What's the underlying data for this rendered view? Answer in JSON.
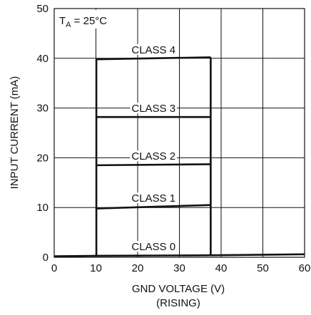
{
  "chart_data": {
    "type": "line",
    "xlabel": "GND VOLTAGE (V)",
    "xlabel_line2": "(RISING)",
    "ylabel": "INPUT CURRENT (mA)",
    "xlim": [
      0,
      60
    ],
    "ylim": [
      0,
      50
    ],
    "x_ticks": [
      0,
      10,
      20,
      30,
      40,
      50,
      60
    ],
    "y_ticks": [
      0,
      10,
      20,
      30,
      40,
      50
    ],
    "grid": true,
    "annotation": {
      "prefix": "T",
      "subscript": "A",
      "suffix": " = 25°C"
    },
    "series": [
      {
        "name": "CLASS 0",
        "points": [
          [
            0,
            0.2
          ],
          [
            10.1,
            0.3
          ],
          [
            37.5,
            0.4
          ],
          [
            60,
            0.6
          ]
        ]
      },
      {
        "name": "CLASS 1",
        "points": [
          [
            10.1,
            9.8
          ],
          [
            37.5,
            10.5
          ]
        ]
      },
      {
        "name": "CLASS 2",
        "points": [
          [
            10.1,
            18.5
          ],
          [
            37.5,
            18.7
          ]
        ]
      },
      {
        "name": "CLASS 3",
        "points": [
          [
            10.1,
            28.2
          ],
          [
            37.5,
            28.2
          ]
        ]
      },
      {
        "name": "CLASS 4",
        "points": [
          [
            10.1,
            39.8
          ],
          [
            37.5,
            40.2
          ]
        ]
      }
    ],
    "steps": [
      {
        "x": 10.1,
        "y_from": 0.3,
        "y_to": 39.8
      },
      {
        "x": 37.5,
        "y_from": 40.2,
        "y_to": 0.4
      }
    ],
    "line_color": "#111111",
    "grid_color": "#111111"
  }
}
